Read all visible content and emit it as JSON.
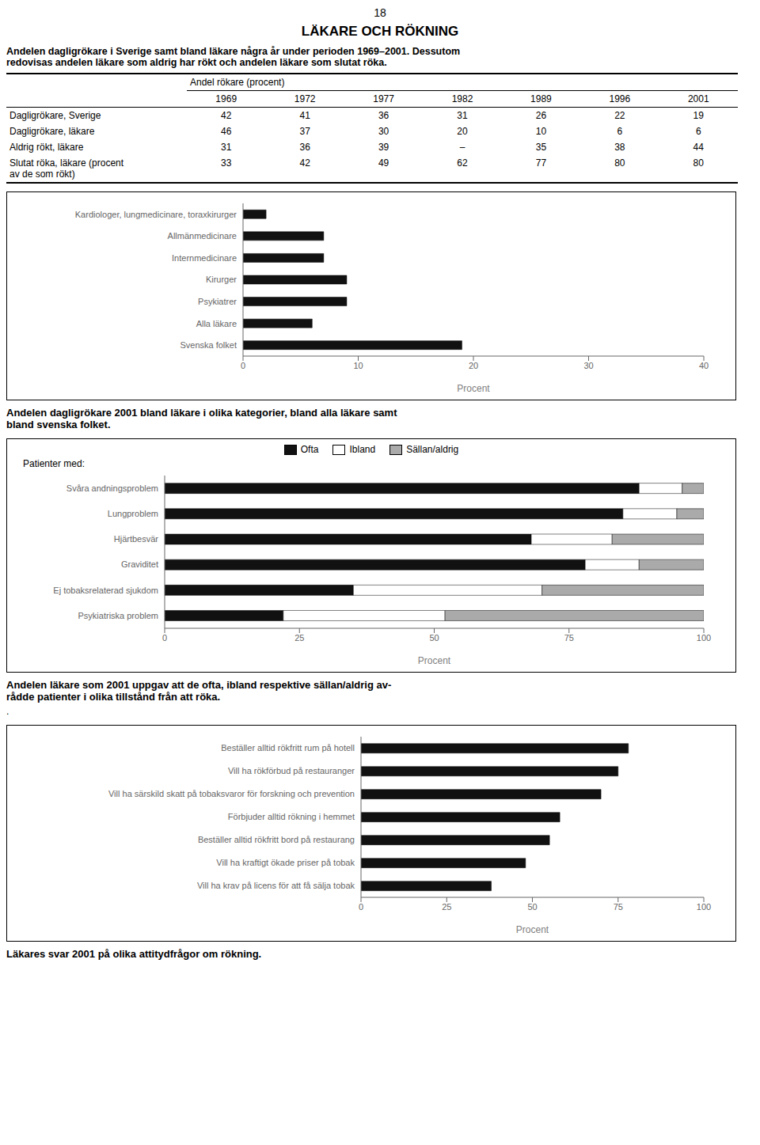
{
  "page_number": "18",
  "title": "LÄKARE OCH RÖKNING",
  "intro": [
    "Andelen dagligrökare i Sverige samt bland läkare några år under perioden 1969–2001. Dessutom",
    "redovisas andelen läkare som aldrig har rökt och andelen läkare som slutat röka."
  ],
  "table": {
    "header": "Andel rökare (procent)",
    "columns": [
      "1969",
      "1972",
      "1977",
      "1982",
      "1989",
      "1996",
      "2001"
    ],
    "rows": [
      {
        "label": [
          "Dagligrökare, Sverige"
        ],
        "values": [
          "42",
          "41",
          "36",
          "31",
          "26",
          "22",
          "19"
        ]
      },
      {
        "label": [
          "Dagligrökare, läkare"
        ],
        "values": [
          "46",
          "37",
          "30",
          "20",
          "10",
          "6",
          "6"
        ]
      },
      {
        "label": [
          "Aldrig rökt, läkare"
        ],
        "values": [
          "31",
          "36",
          "39",
          "–",
          "35",
          "38",
          "44"
        ]
      },
      {
        "label": [
          "Slutat röka, läkare (procent",
          "av de som rökt)"
        ],
        "values": [
          "33",
          "42",
          "49",
          "62",
          "77",
          "80",
          "80"
        ]
      }
    ]
  },
  "separator": ".",
  "chart_data": [
    {
      "type": "bar",
      "orientation": "horizontal",
      "title": [
        "Andelen dagligrökare 2001 bland läkare i olika kategorier, bland alla läkare samt",
        "bland svenska folket."
      ],
      "categories": [
        "Kardiologer, lungmedicinare, toraxkirurger",
        "Allmänmedicinare",
        "Internmedicinare",
        "Kirurger",
        "Psykiatrer",
        "Alla läkare",
        "Svenska folket"
      ],
      "values": [
        2,
        7,
        7,
        9,
        9,
        6,
        19
      ],
      "color": "#111111",
      "xlim": [
        0,
        40
      ],
      "xticks": [
        0,
        10,
        20,
        30,
        40
      ],
      "xlabel": "Procent",
      "grid": false
    },
    {
      "type": "bar",
      "orientation": "horizontal",
      "stacked": true,
      "title": [
        "Andelen läkare som 2001 uppgav att de ofta, ibland respektive sällan/aldrig av-",
        "rådde patienter i olika tillstånd från att röka."
      ],
      "ylabel": "Patienter med:",
      "categories": [
        "Svåra andningsproblem",
        "Lungproblem",
        "Hjärtbesvär",
        "Graviditet",
        "Ej tobaksrelaterad sjukdom",
        "Psykiatriska problem"
      ],
      "series": [
        {
          "name": "Ofta",
          "color": "#111111",
          "values": [
            88,
            85,
            68,
            78,
            35,
            22
          ]
        },
        {
          "name": "Ibland",
          "color": "#ffffff",
          "values": [
            8,
            10,
            15,
            10,
            35,
            30
          ]
        },
        {
          "name": "Sällan/aldrig",
          "color": "#aaaaaa",
          "values": [
            4,
            5,
            17,
            12,
            30,
            48
          ]
        }
      ],
      "xlim": [
        0,
        100
      ],
      "xticks": [
        0,
        25,
        50,
        75,
        100
      ],
      "xlabel": "Procent",
      "legend": "top",
      "grid": false
    },
    {
      "type": "bar",
      "orientation": "horizontal",
      "title": [
        "Läkares svar 2001 på olika attitydfrågor om rökning."
      ],
      "categories": [
        "Beställer alltid rökfritt rum på hotell",
        "Vill ha rökförbud på restauranger",
        "Vill ha särskild skatt på tobaksvaror för forskning och prevention",
        "Förbjuder alltid rökning i hemmet",
        "Beställer alltid rökfritt bord på restaurang",
        "Vill ha kraftigt ökade priser på tobak",
        "Vill ha krav på licens för att få sälja tobak"
      ],
      "values": [
        78,
        75,
        70,
        58,
        55,
        48,
        38
      ],
      "color": "#111111",
      "xlim": [
        0,
        100
      ],
      "xticks": [
        0,
        25,
        50,
        75,
        100
      ],
      "xlabel": "Procent",
      "grid": false
    }
  ]
}
